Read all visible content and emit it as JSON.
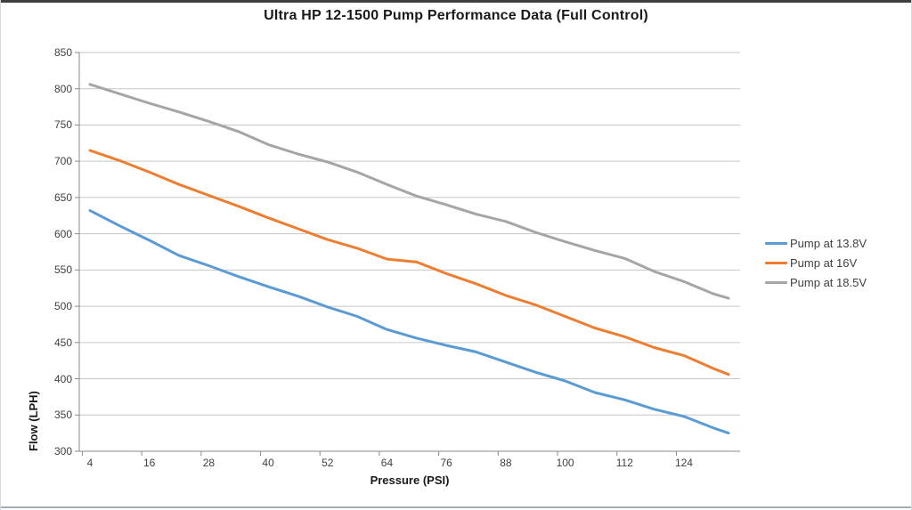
{
  "window": {
    "top_edge_color": "#3f3f3f",
    "bottom_edge_color": "#a6adb3"
  },
  "chart_data": {
    "type": "line",
    "title": "Ultra HP 12-1500 Pump Performance Data (Full Control)",
    "xlabel": "Pressure (PSI)",
    "ylabel": "Flow (LPH)",
    "xlim": [
      4,
      133
    ],
    "ylim": [
      300,
      850
    ],
    "x_ticks": [
      4,
      16,
      28,
      40,
      52,
      64,
      76,
      88,
      100,
      112,
      124
    ],
    "y_ticks": [
      850,
      800,
      750,
      700,
      650,
      600,
      550,
      500,
      450,
      400,
      350,
      300
    ],
    "grid": true,
    "legend_position": "right",
    "x": [
      4,
      10,
      16,
      22,
      28,
      34,
      40,
      46,
      52,
      58,
      64,
      70,
      76,
      82,
      88,
      94,
      100,
      106,
      112,
      118,
      124,
      130,
      133
    ],
    "series": [
      {
        "name": "Pump at 13.8V",
        "color": "#5B9BD5",
        "values": [
          632,
          611,
          591,
          570,
          556,
          541,
          527,
          514,
          499,
          486,
          468,
          456,
          446,
          437,
          423,
          409,
          397,
          381,
          371,
          358,
          348,
          332,
          325
        ]
      },
      {
        "name": "Pump at 16V",
        "color": "#ED7D31",
        "values": [
          715,
          701,
          685,
          668,
          653,
          638,
          622,
          607,
          592,
          580,
          565,
          561,
          545,
          531,
          515,
          502,
          486,
          470,
          458,
          443,
          432,
          414,
          406
        ]
      },
      {
        "name": "Pump at 18.5V",
        "color": "#A5A5A5",
        "values": [
          806,
          793,
          780,
          768,
          755,
          741,
          723,
          710,
          699,
          685,
          668,
          652,
          640,
          627,
          617,
          602,
          589,
          577,
          566,
          548,
          534,
          517,
          511
        ]
      }
    ],
    "colors": {
      "gridline": "#c6c6c6",
      "axis": "#898989",
      "tick_text": "#404040",
      "title_text": "#1a1a1a"
    }
  }
}
